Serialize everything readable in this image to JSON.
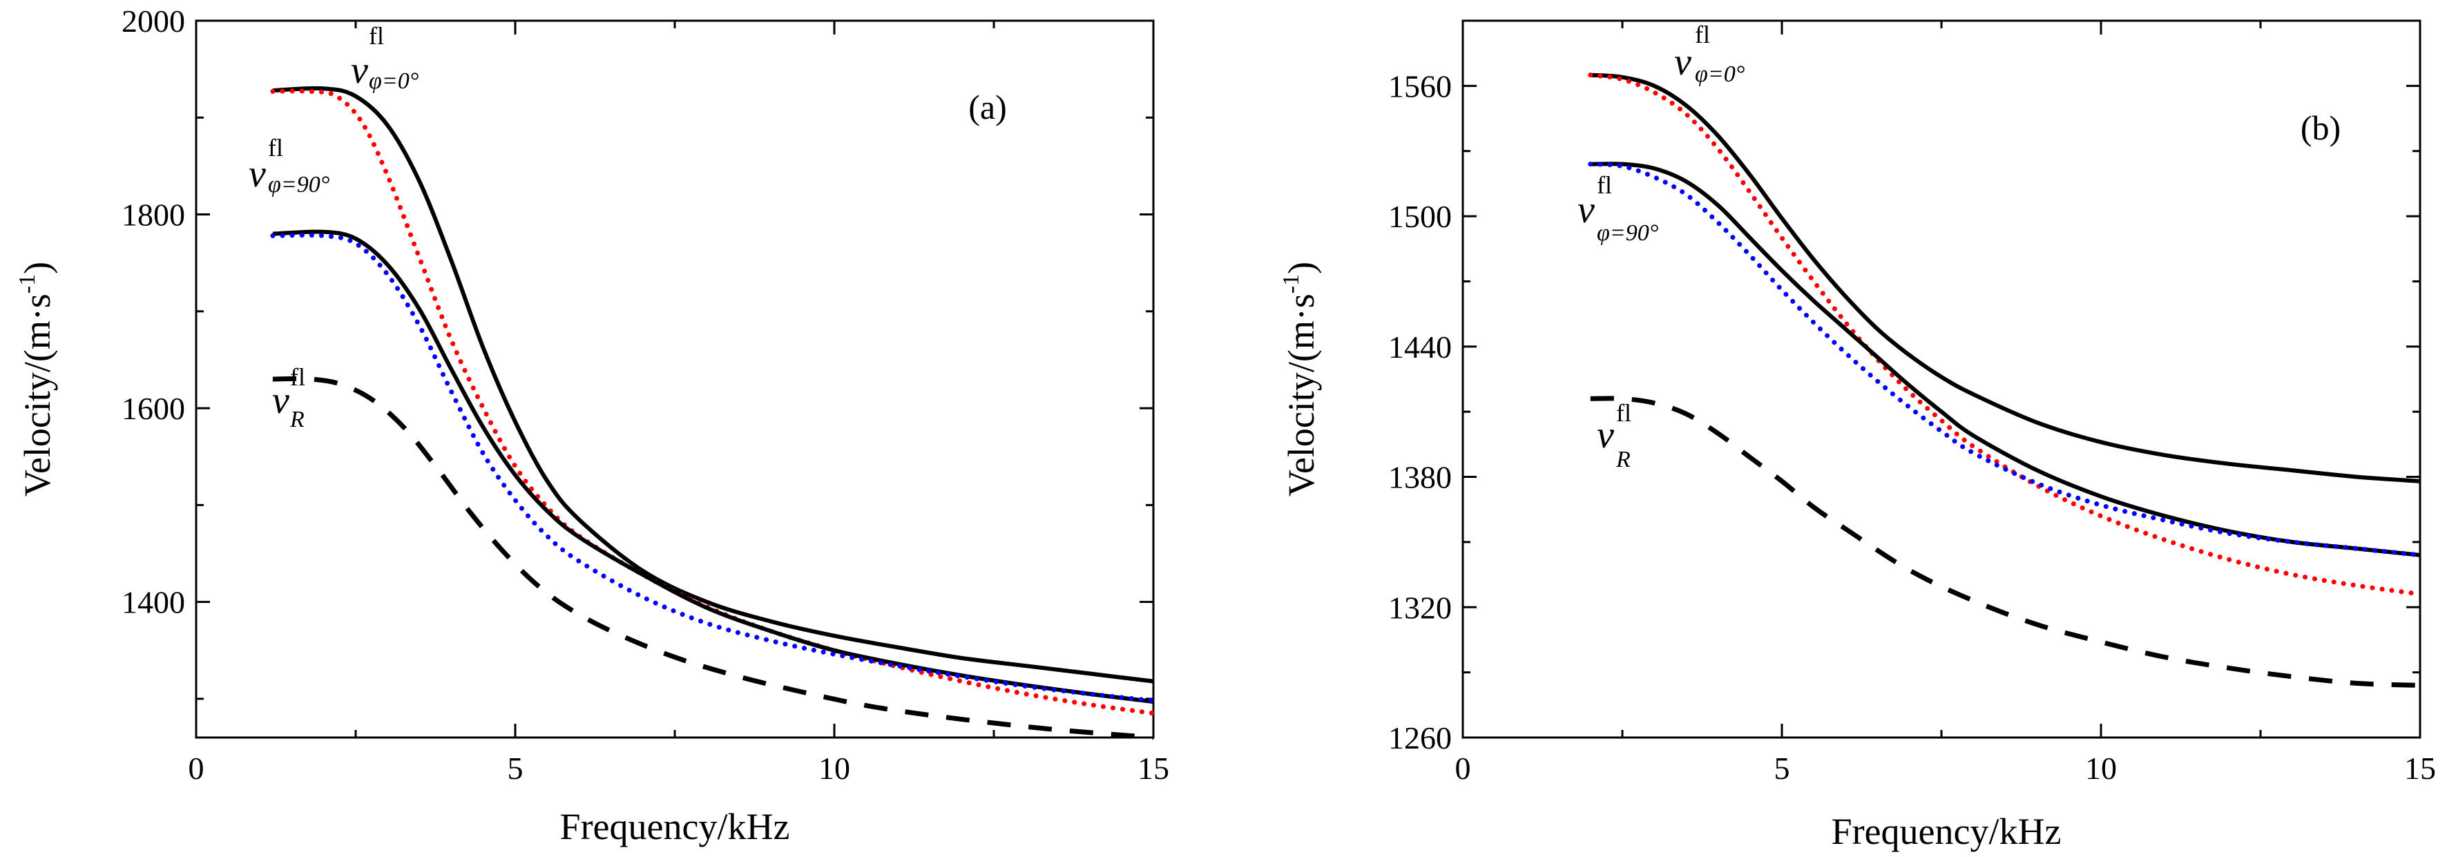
{
  "chart_data": [
    {
      "type": "line",
      "panel_label": "(a)",
      "xlabel": "Frequency/kHz",
      "ylabel_base": "Velocity/(m·s",
      "ylabel_sup": "-1",
      "ylabel_close": ")",
      "xlim": [
        0,
        15
      ],
      "ylim": [
        1260,
        2000
      ],
      "xticks": [
        0,
        5,
        10,
        15
      ],
      "yticks": [
        1400,
        1600,
        1800,
        2000
      ],
      "grid": false,
      "series": [
        {
          "style": "solid",
          "color": "#000000",
          "x": [
            1.2,
            2,
            2.5,
            3,
            3.5,
            4,
            4.5,
            5,
            5.5,
            6,
            7,
            8,
            9,
            10,
            11,
            12,
            13,
            14,
            15
          ],
          "y": [
            1928,
            1930,
            1922,
            1892,
            1834,
            1752,
            1662,
            1586,
            1525,
            1485,
            1432,
            1400,
            1380,
            1365,
            1353,
            1342,
            1334,
            1326,
            1318
          ]
        },
        {
          "style": "dotted",
          "color": "#ff0000",
          "x": [
            1.2,
            1.8,
            2.2,
            2.6,
            3,
            3.5,
            4,
            4.5,
            5,
            5.5,
            6,
            7,
            8,
            9,
            10,
            11,
            12,
            13,
            14,
            15
          ],
          "y": [
            1927,
            1927,
            1922,
            1895,
            1840,
            1755,
            1670,
            1600,
            1540,
            1498,
            1468,
            1428,
            1395,
            1370,
            1350,
            1333,
            1318,
            1305,
            1294,
            1285
          ]
        },
        {
          "style": "solid",
          "color": "#000000",
          "x": [
            1.2,
            2,
            2.5,
            3,
            3.5,
            4,
            4.5,
            5,
            5.5,
            6,
            7,
            8,
            9,
            10,
            11,
            12,
            13,
            14,
            15
          ],
          "y": [
            1780,
            1782,
            1775,
            1748,
            1702,
            1640,
            1580,
            1531,
            1494,
            1467,
            1428,
            1394,
            1370,
            1350,
            1336,
            1324,
            1314,
            1305,
            1297
          ]
        },
        {
          "style": "dotted",
          "color": "#0000ff",
          "x": [
            1.2,
            2,
            2.5,
            3,
            3.5,
            4,
            4.5,
            5,
            5.5,
            6,
            7,
            8,
            9,
            10,
            11,
            12,
            13,
            14,
            15
          ],
          "y": [
            1778,
            1778,
            1770,
            1738,
            1685,
            1617,
            1553,
            1505,
            1468,
            1442,
            1405,
            1378,
            1360,
            1346,
            1334,
            1323,
            1313,
            1305,
            1298
          ]
        },
        {
          "style": "dashed",
          "color": "#000000",
          "x": [
            1.2,
            1.8,
            2.3,
            2.8,
            3.3,
            3.8,
            4.3,
            4.8,
            5.3,
            5.8,
            6.5,
            7.5,
            8.5,
            9.5,
            10.5,
            11.5,
            12.5,
            13.5,
            15
          ],
          "y": [
            1630,
            1630,
            1624,
            1607,
            1577,
            1536,
            1492,
            1453,
            1420,
            1395,
            1370,
            1343,
            1323,
            1307,
            1293,
            1283,
            1275,
            1268,
            1260
          ]
        }
      ],
      "annotations": [
        {
          "main": "v",
          "sup": "fl",
          "sub": "φ=0°"
        },
        {
          "main": "v",
          "sup": "fl",
          "sub": "φ=90°"
        },
        {
          "main": "v",
          "sup": "fl",
          "sub": "R"
        }
      ]
    },
    {
      "type": "line",
      "panel_label": "(b)",
      "xlabel": "Frequency/kHz",
      "ylabel_base": "Velocity/(m·s",
      "ylabel_sup": "-1",
      "ylabel_close": ")",
      "xlim": [
        0,
        15
      ],
      "ylim": [
        1260,
        1590
      ],
      "xticks": [
        0,
        5,
        10,
        15
      ],
      "yticks": [
        1260,
        1320,
        1380,
        1440,
        1500,
        1560
      ],
      "grid": false,
      "series": [
        {
          "style": "solid",
          "color": "#000000",
          "x": [
            2,
            2.5,
            3,
            3.5,
            4,
            4.5,
            5,
            5.5,
            6,
            6.5,
            7,
            7.5,
            8,
            9,
            10,
            11,
            12,
            13,
            14,
            15
          ],
          "y": [
            1565,
            1564,
            1560,
            1551,
            1537,
            1519,
            1499,
            1480,
            1463,
            1448,
            1436,
            1426,
            1418,
            1405,
            1396,
            1390,
            1386,
            1383,
            1380,
            1378
          ]
        },
        {
          "style": "dotted",
          "color": "#ff0000",
          "x": [
            2,
            2.5,
            3,
            3.5,
            4,
            4.5,
            5,
            5.5,
            6,
            6.5,
            7,
            7.5,
            8,
            9,
            10,
            11,
            12,
            13,
            14,
            15
          ],
          "y": [
            1565,
            1563,
            1557,
            1547,
            1531,
            1511,
            1490,
            1470,
            1451,
            1434,
            1419,
            1406,
            1394,
            1376,
            1362,
            1351,
            1342,
            1335,
            1330,
            1326
          ]
        },
        {
          "style": "solid",
          "color": "#000000",
          "x": [
            2,
            2.5,
            3,
            3.5,
            4,
            4.5,
            5,
            5.5,
            6,
            6.5,
            7,
            7.5,
            8,
            9,
            10,
            11,
            12,
            13,
            14,
            15
          ],
          "y": [
            1524,
            1524,
            1522,
            1516,
            1505,
            1490,
            1475,
            1461,
            1448,
            1435,
            1422,
            1410,
            1399,
            1383,
            1371,
            1362,
            1355,
            1350,
            1347,
            1344
          ]
        },
        {
          "style": "dotted",
          "color": "#0000ff",
          "x": [
            2,
            2.5,
            3,
            3.5,
            4,
            4.5,
            5,
            5.5,
            6,
            6.5,
            7,
            7.5,
            8,
            9,
            10,
            11,
            12,
            13,
            14,
            15
          ],
          "y": [
            1524,
            1523,
            1518,
            1510,
            1497,
            1482,
            1466,
            1451,
            1437,
            1424,
            1412,
            1401,
            1391,
            1377,
            1367,
            1360,
            1354,
            1350,
            1347,
            1344
          ]
        },
        {
          "style": "dashed",
          "color": "#000000",
          "x": [
            2,
            2.5,
            3,
            3.5,
            4,
            4.5,
            5,
            5.5,
            6,
            7,
            8,
            9,
            10,
            11,
            12,
            13,
            14,
            15
          ],
          "y": [
            1416,
            1416,
            1414,
            1409,
            1400,
            1389,
            1378,
            1366,
            1356,
            1337,
            1323,
            1312,
            1304,
            1297,
            1292,
            1288,
            1285,
            1284
          ]
        }
      ],
      "annotations": [
        {
          "main": "v",
          "sup": "fl",
          "sub": "φ=0°"
        },
        {
          "main": "v",
          "sup": "fl",
          "sub": "φ=90°"
        },
        {
          "main": "v",
          "sup": "fl",
          "sub": "R"
        }
      ]
    }
  ]
}
